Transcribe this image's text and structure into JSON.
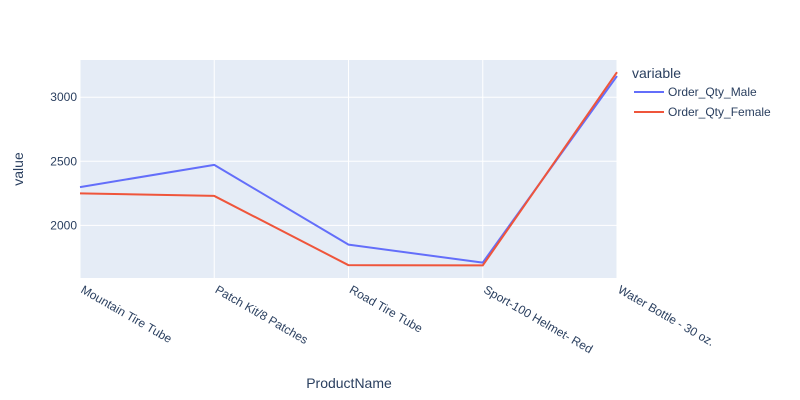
{
  "chart_data": {
    "type": "line",
    "xlabel": "ProductName",
    "ylabel": "value",
    "categories": [
      "Mountain Tire Tube",
      "Patch Kit/8 Patches",
      "Road Tire Tube",
      "Sport-100 Helmet- Red",
      "Water Bottle - 30 oz."
    ],
    "y_ticks": [
      2000,
      2500,
      3000
    ],
    "ylim": [
      1590,
      3290
    ],
    "grid": true,
    "legend": {
      "title": "variable",
      "placement": "top-right"
    },
    "series": [
      {
        "name": "Order_Qty_Male",
        "color": "#636efa",
        "values": [
          2299,
          2472,
          1850,
          1710,
          3165
        ]
      },
      {
        "name": "Order_Qty_Female",
        "color": "#ef553b",
        "values": [
          2250,
          2230,
          1690,
          1688,
          3195
        ]
      }
    ],
    "colors": {
      "plot_bg": "#e5ecf6",
      "grid": "#ffffff",
      "text": "#2a3f5f"
    }
  }
}
